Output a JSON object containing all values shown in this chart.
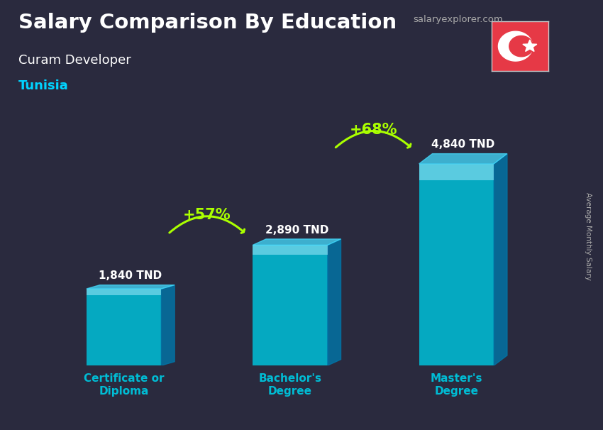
{
  "title_main": "Salary Comparison By Education",
  "subtitle1": "Curam Developer",
  "subtitle2": "Tunisia",
  "categories": [
    "Certificate or\nDiploma",
    "Bachelor's\nDegree",
    "Master's\nDegree"
  ],
  "values": [
    1840,
    2890,
    4840
  ],
  "value_labels": [
    "1,840 TND",
    "2,890 TND",
    "4,840 TND"
  ],
  "pct_labels": [
    "+57%",
    "+68%"
  ],
  "bar_color_face": "#00bcd4",
  "bar_color_side": "#0077aa",
  "bar_color_top": "#44ddff",
  "bar_highlight": "#b0eeff",
  "background_color": "#2a2a3e",
  "title_color": "#ffffff",
  "subtitle1_color": "#ffffff",
  "subtitle2_color": "#00d4ff",
  "category_color": "#00bcd4",
  "value_color": "#ffffff",
  "pct_color": "#aaff00",
  "arrow_color": "#aaff00",
  "ylabel_text": "Average Monthly Salary",
  "brand_text": "salaryexplorer.com",
  "brand_color": "#aaaaaa",
  "flag_bg": "#e63946",
  "ylim": [
    0,
    6500
  ]
}
